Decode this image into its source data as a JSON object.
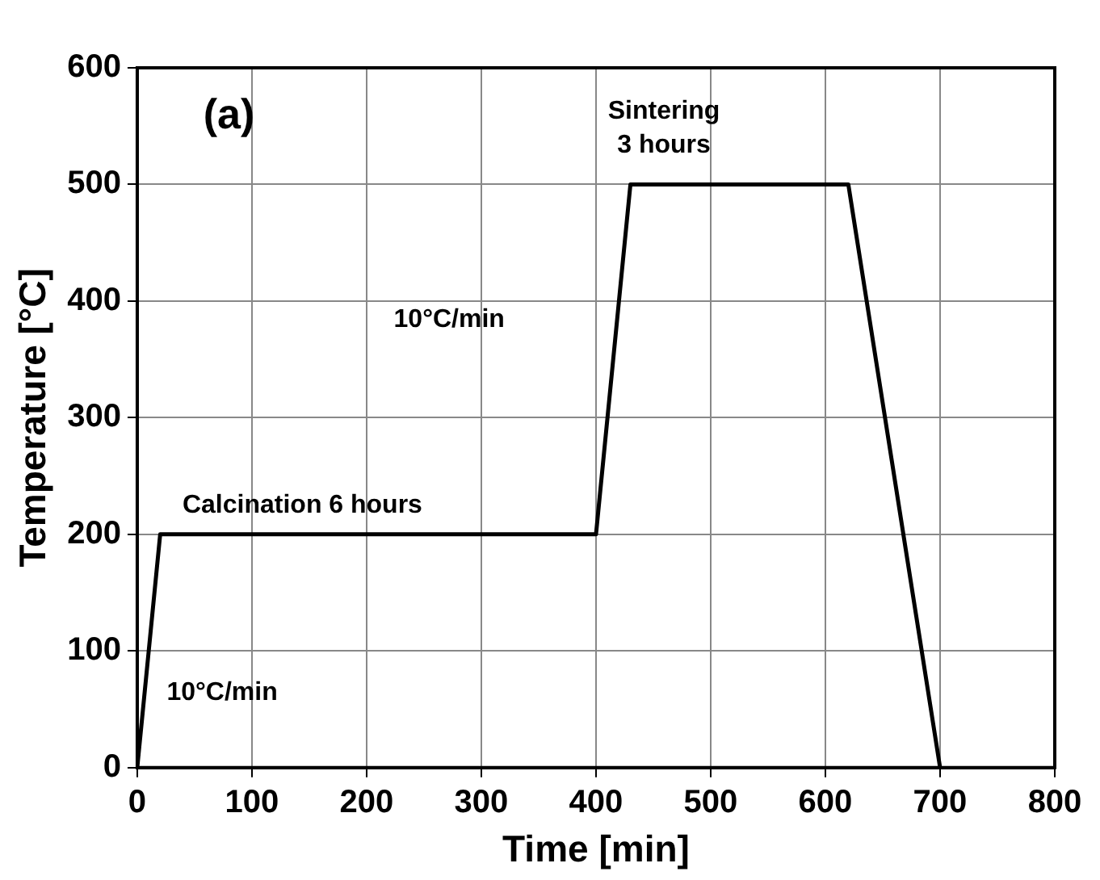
{
  "chart_data": {
    "type": "line",
    "xlabel": "Time [min]",
    "ylabel": "Temperature [°C]",
    "x": [
      0,
      20,
      400,
      430,
      620,
      700
    ],
    "series": [
      {
        "color": "#000000",
        "values": [
          0,
          200,
          200,
          500,
          500,
          0
        ]
      }
    ],
    "xlim": [
      0,
      800
    ],
    "xticks": [
      0,
      100,
      200,
      300,
      400,
      500,
      600,
      700,
      800
    ],
    "ylim": [
      0,
      600
    ],
    "yticks": [
      0,
      100,
      200,
      300,
      400,
      500,
      600
    ],
    "grid": true,
    "legend": false,
    "marker": "none",
    "line_style": "solid",
    "annotations": [
      "(a)",
      "Calcination 6 hours",
      "10°C/min",
      "10°C/min",
      "Sintering\n3 hours"
    ]
  }
}
